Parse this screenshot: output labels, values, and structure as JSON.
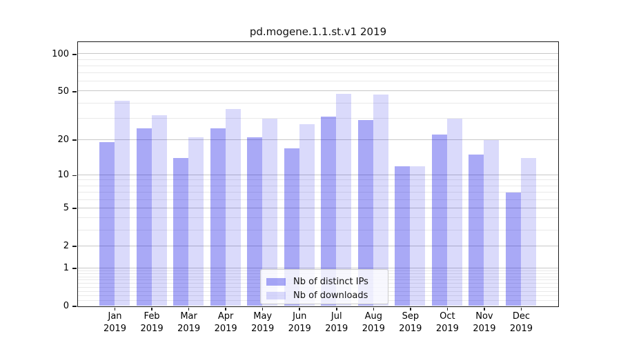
{
  "chart_data": {
    "type": "bar",
    "title": "pd.mogene.1.1.st.v1 2019",
    "categories": [
      "Jan",
      "Feb",
      "Mar",
      "Apr",
      "May",
      "Jun",
      "Jul",
      "Aug",
      "Sep",
      "Oct",
      "Nov",
      "Dec"
    ],
    "x_tick_year": "2019",
    "series": [
      {
        "name": "Nb of distinct IPs",
        "color": "#0a0ae659",
        "values": [
          19,
          25,
          14,
          25,
          21,
          17,
          31,
          29,
          12,
          22,
          15,
          7
        ]
      },
      {
        "name": "Nb of downloads",
        "color": "#0a0ae626",
        "values": [
          42,
          32,
          21,
          36,
          30,
          27,
          48,
          47,
          12,
          30,
          20,
          14
        ]
      }
    ],
    "y_axis": {
      "scale": "log1p",
      "ticks": [
        0,
        1,
        2,
        5,
        10,
        20,
        50,
        100
      ],
      "minor_ticks": [
        0.1,
        0.2,
        0.3,
        0.4,
        0.5,
        0.6,
        0.7,
        0.8,
        0.9,
        3,
        4,
        6,
        7,
        8,
        9,
        30,
        40,
        60,
        70,
        80,
        90
      ],
      "ylim": [
        0,
        125
      ]
    },
    "xlabel": "",
    "ylabel": "",
    "grid": "major-and-minor",
    "legend_position": "lower-center-inside"
  },
  "colors": {
    "bar_distinct_ips": "#a9a9f7",
    "bar_downloads": "#dadaf9",
    "major_grid": "#c8c8c8",
    "minor_grid": "#e9e9e9",
    "spine": "#1a1a1a",
    "text": "#111111",
    "legend_border": "#cccccc"
  }
}
